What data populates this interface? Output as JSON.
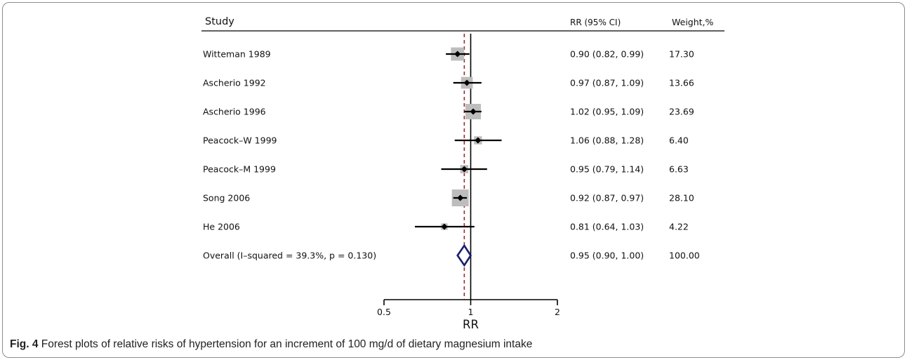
{
  "chart_data": {
    "type": "forest",
    "header": {
      "study": "Study",
      "effect": "RR (95% CI)",
      "weight": "Weight,%"
    },
    "xlabel": "RR",
    "x_scale": "log",
    "xlim": [
      0.5,
      2
    ],
    "ticks": [
      {
        "value": 0.5,
        "label": "0.5"
      },
      {
        "value": 1,
        "label": "1"
      },
      {
        "value": 2,
        "label": "2"
      }
    ],
    "null_line": 1,
    "overall_line": 0.95,
    "studies": [
      {
        "name": "Witteman 1989",
        "rr": 0.9,
        "lower": 0.82,
        "upper": 0.99,
        "ci_text": "0.90 (0.82, 0.99)",
        "weight": 17.3,
        "weight_text": "17.30"
      },
      {
        "name": "Ascherio  1992",
        "rr": 0.97,
        "lower": 0.87,
        "upper": 1.09,
        "ci_text": "0.97 (0.87, 1.09)",
        "weight": 13.66,
        "weight_text": "13.66"
      },
      {
        "name": "Ascherio 1996",
        "rr": 1.02,
        "lower": 0.95,
        "upper": 1.09,
        "ci_text": "1.02 (0.95, 1.09)",
        "weight": 23.69,
        "weight_text": "23.69"
      },
      {
        "name": "Peacock–W 1999",
        "rr": 1.06,
        "lower": 0.88,
        "upper": 1.28,
        "ci_text": "1.06 (0.88, 1.28)",
        "weight": 6.4,
        "weight_text": "6.40"
      },
      {
        "name": "Peacock–M 1999",
        "rr": 0.95,
        "lower": 0.79,
        "upper": 1.14,
        "ci_text": "0.95 (0.79, 1.14)",
        "weight": 6.63,
        "weight_text": "6.63"
      },
      {
        "name": "Song 2006",
        "rr": 0.92,
        "lower": 0.87,
        "upper": 0.97,
        "ci_text": "0.92 (0.87, 0.97)",
        "weight": 28.1,
        "weight_text": "28.10"
      },
      {
        "name": "He 2006",
        "rr": 0.81,
        "lower": 0.64,
        "upper": 1.03,
        "ci_text": "0.81 (0.64, 1.03)",
        "weight": 4.22,
        "weight_text": "4.22"
      }
    ],
    "overall": {
      "name": "Overall  (I–squared = 39.3%, p = 0.130)",
      "rr": 0.95,
      "lower": 0.9,
      "upper": 1.0,
      "ci_text": "0.95 (0.90, 1.00)",
      "weight_text": "100.00"
    },
    "colors": {
      "box": "#bdbdbd",
      "point": "#000000",
      "diamond": "#1a1f6e",
      "overall_line": "#a0282d"
    }
  },
  "caption": {
    "label": "Fig. 4",
    "text": " Forest plots of relative risks of hypertension for an increment of 100 mg/d of dietary magnesium intake"
  }
}
